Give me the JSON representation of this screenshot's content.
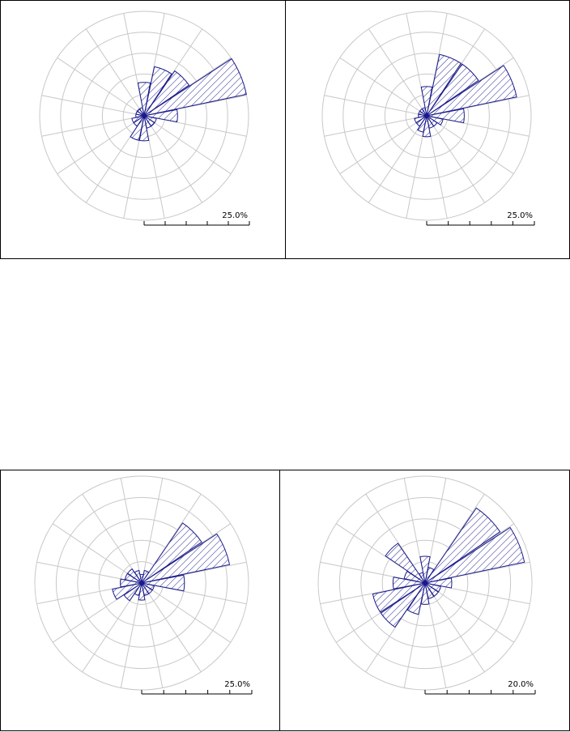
{
  "chart_data": [
    {
      "type": "rose",
      "directions": 16,
      "rings": 5,
      "scale_label": "25.0%",
      "colors": {
        "bar": "#1a1a8c",
        "hatch": "#1a1a8c",
        "grid": "#c8c8c8",
        "axis": "#000000"
      },
      "values": [
        8,
        12,
        13,
        25,
        8,
        3,
        3,
        3,
        6,
        6,
        3,
        3,
        2,
        2,
        2,
        2
      ]
    },
    {
      "type": "rose",
      "directions": 16,
      "rings": 5,
      "scale_label": "25.0%",
      "colors": {
        "bar": "#1a1a8c",
        "hatch": "#1a1a8c",
        "grid": "#c8c8c8",
        "axis": "#000000"
      },
      "values": [
        7,
        15,
        15,
        22,
        9,
        4,
        3,
        3,
        5,
        4,
        3,
        3,
        2,
        2,
        2,
        2
      ]
    },
    {
      "type": "rose",
      "directions": 16,
      "rings": 5,
      "scale_label": "25.0%",
      "colors": {
        "bar": "#1a1a8c",
        "hatch": "#1a1a8c",
        "grid": "#c8c8c8",
        "axis": "#000000"
      },
      "values": [
        2,
        3,
        17,
        21,
        10,
        3,
        3,
        3,
        4,
        3,
        5,
        7,
        5,
        4,
        4,
        3
      ]
    },
    {
      "type": "rose",
      "directions": 16,
      "rings": 5,
      "scale_label": "20.0%",
      "colors": {
        "bar": "#1a1a8c",
        "hatch": "#1a1a8c",
        "grid": "#c8c8c8",
        "axis": "#000000"
      },
      "values": [
        5,
        3,
        17,
        19,
        5,
        3,
        3,
        3,
        4,
        6,
        10,
        10,
        6,
        4,
        9,
        2
      ]
    }
  ]
}
